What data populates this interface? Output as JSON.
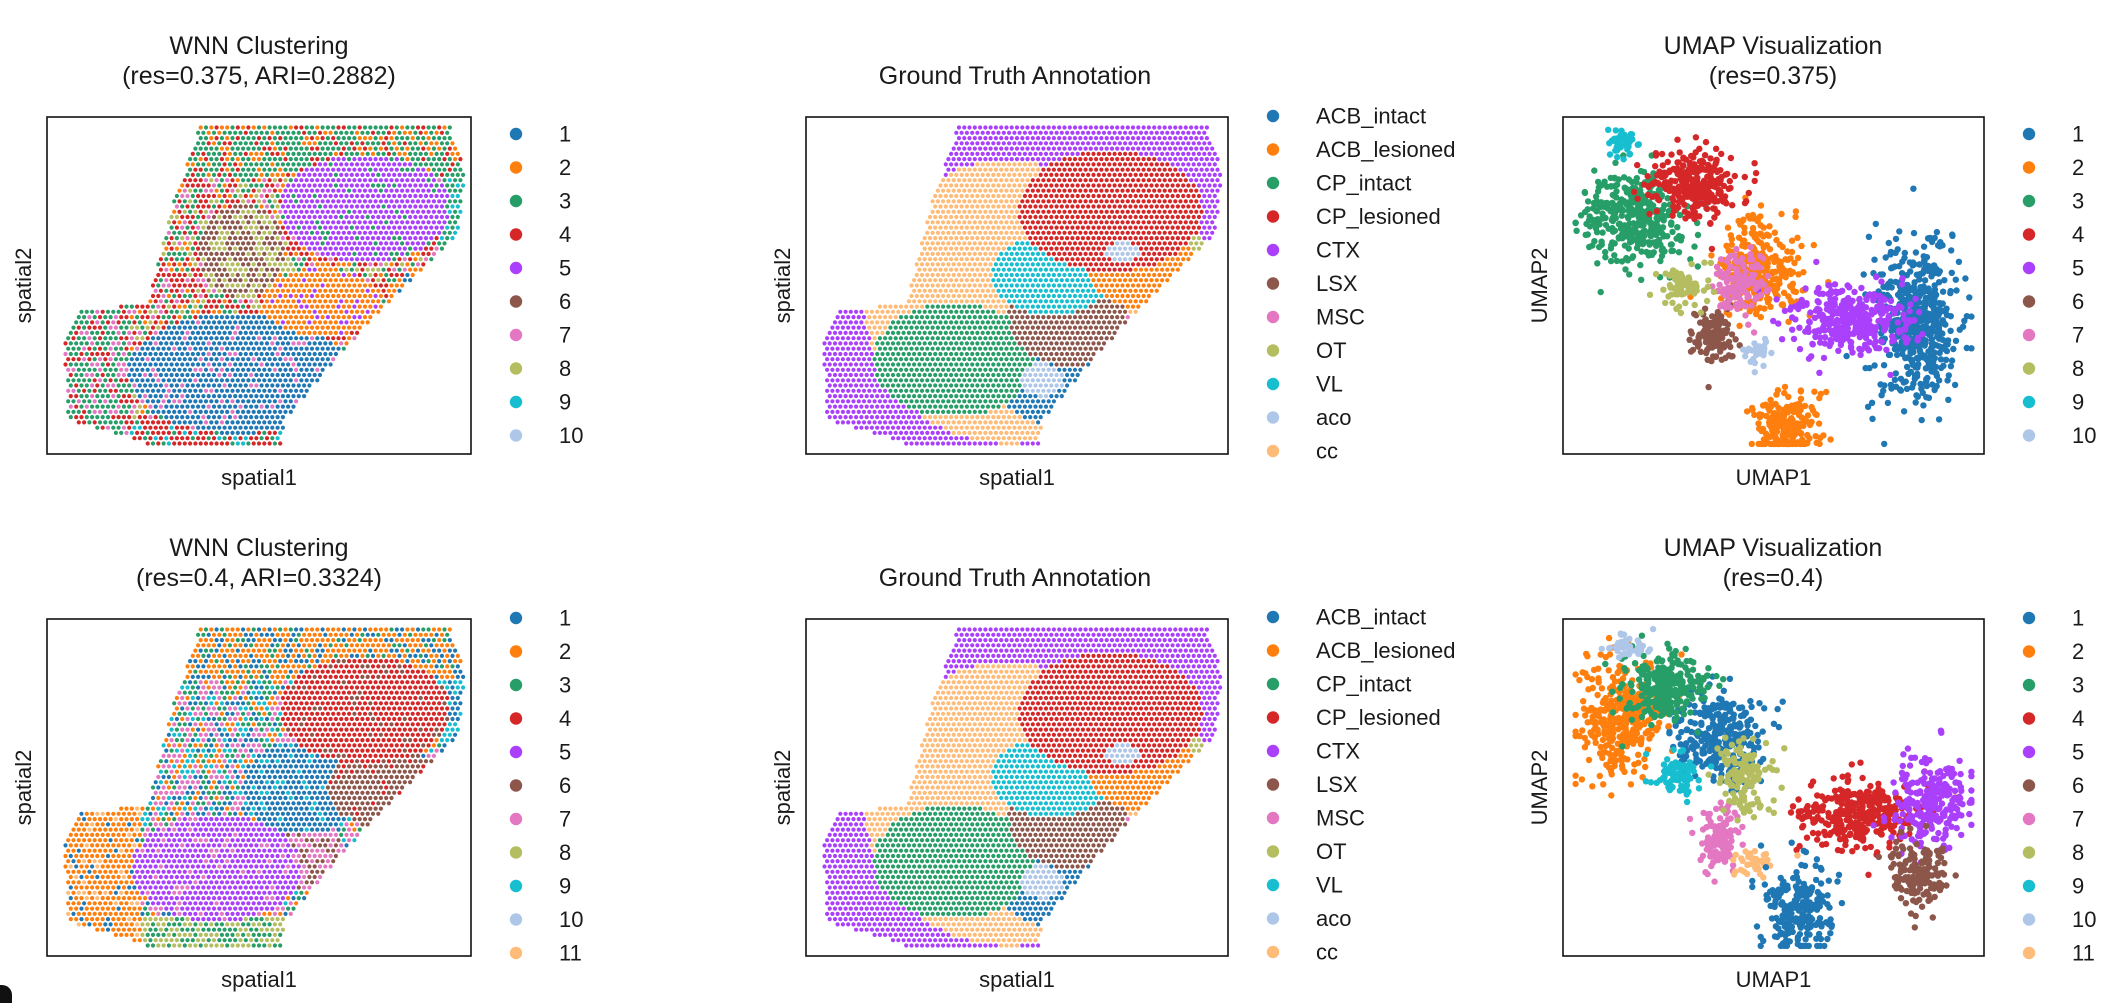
{
  "figure": {
    "palette_clusters": [
      "#1f77b4",
      "#ff7f0e",
      "#279e68",
      "#d62728",
      "#aa40fc",
      "#8c564b",
      "#e377c2",
      "#b5bd61",
      "#17becf",
      "#aec7e8",
      "#ffbb78"
    ],
    "palette_annotation": {
      "ACB_intact": "#1f77b4",
      "ACB_lesioned": "#ff7f0e",
      "CP_intact": "#279e68",
      "CP_lesioned": "#d62728",
      "CTX": "#aa40fc",
      "LSX": "#8c564b",
      "MSC": "#e377c2",
      "OT": "#b5bd61",
      "VL": "#17becf",
      "aco": "#aec7e8",
      "cc": "#ffbb78"
    }
  },
  "chart_data": [
    {
      "id": "wnn_r1",
      "type": "scatter",
      "kind": "spatial-cluster",
      "title_lines": [
        "WNN Clustering",
        "(res=0.375, ARI=0.2882)"
      ],
      "xlabel": "spatial1",
      "ylabel": "spatial2",
      "legend": [
        "1",
        "2",
        "3",
        "4",
        "5",
        "6",
        "7",
        "8",
        "9",
        "10"
      ],
      "legend_placement": "right",
      "grid": false,
      "resolution": 0.375,
      "ARI": 0.2882
    },
    {
      "id": "gt_r1",
      "type": "scatter",
      "kind": "spatial-annotation",
      "title_lines": [
        "Ground Truth Annotation"
      ],
      "xlabel": "spatial1",
      "ylabel": "spatial2",
      "legend": [
        "ACB_intact",
        "ACB_lesioned",
        "CP_intact",
        "CP_lesioned",
        "CTX",
        "LSX",
        "MSC",
        "OT",
        "VL",
        "aco",
        "cc"
      ],
      "legend_placement": "right",
      "grid": false
    },
    {
      "id": "umap_r1",
      "type": "scatter",
      "kind": "umap",
      "title_lines": [
        "UMAP Visualization",
        "(res=0.375)"
      ],
      "xlabel": "UMAP1",
      "ylabel": "UMAP2",
      "legend": [
        "1",
        "2",
        "3",
        "4",
        "5",
        "6",
        "7",
        "8",
        "9",
        "10"
      ],
      "legend_placement": "right",
      "grid": false,
      "resolution": 0.375
    },
    {
      "id": "wnn_r2",
      "type": "scatter",
      "kind": "spatial-cluster",
      "title_lines": [
        "WNN Clustering",
        "(res=0.4, ARI=0.3324)"
      ],
      "xlabel": "spatial1",
      "ylabel": "spatial2",
      "legend": [
        "1",
        "2",
        "3",
        "4",
        "5",
        "6",
        "7",
        "8",
        "9",
        "10",
        "11"
      ],
      "legend_placement": "right",
      "grid": false,
      "resolution": 0.4,
      "ARI": 0.3324
    },
    {
      "id": "gt_r2",
      "type": "scatter",
      "kind": "spatial-annotation",
      "title_lines": [
        "Ground Truth Annotation"
      ],
      "xlabel": "spatial1",
      "ylabel": "spatial2",
      "legend": [
        "ACB_intact",
        "ACB_lesioned",
        "CP_intact",
        "CP_lesioned",
        "CTX",
        "LSX",
        "MSC",
        "OT",
        "VL",
        "aco",
        "cc"
      ],
      "legend_placement": "right",
      "grid": false
    },
    {
      "id": "umap_r2",
      "type": "scatter",
      "kind": "umap",
      "title_lines": [
        "UMAP Visualization",
        "(res=0.4)"
      ],
      "xlabel": "UMAP1",
      "ylabel": "UMAP2",
      "legend": [
        "1",
        "2",
        "3",
        "4",
        "5",
        "6",
        "7",
        "8",
        "9",
        "10",
        "11"
      ],
      "legend_placement": "right",
      "grid": false,
      "resolution": 0.4
    }
  ]
}
